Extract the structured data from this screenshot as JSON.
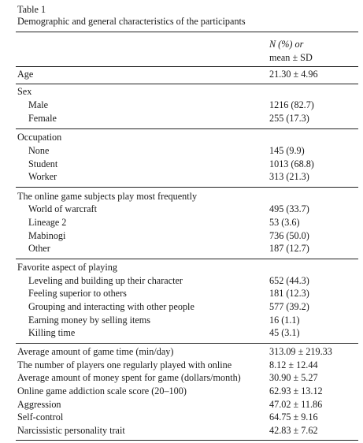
{
  "table": {
    "number": "Table 1",
    "title": "Demographic and general characteristics of the participants",
    "column_header": {
      "n_pct": "N (%) or",
      "mean_sd": "mean ± SD"
    }
  },
  "sections": {
    "age": {
      "label": "Age",
      "value": "21.30 ± 4.96"
    },
    "sex": {
      "label": "Sex",
      "items": [
        {
          "label": "Male",
          "value": "1216 (82.7)"
        },
        {
          "label": "Female",
          "value": "255 (17.3)"
        }
      ]
    },
    "occupation": {
      "label": "Occupation",
      "items": [
        {
          "label": "None",
          "value": "145 (9.9)"
        },
        {
          "label": "Student",
          "value": "1013 (68.8)"
        },
        {
          "label": "Worker",
          "value": "313 (21.3)"
        }
      ]
    },
    "game": {
      "label": "The online game subjects play most frequently",
      "items": [
        {
          "label": "World of warcraft",
          "value": "495 (33.7)"
        },
        {
          "label": "Lineage 2",
          "value": "53 (3.6)"
        },
        {
          "label": "Mabinogi",
          "value": "736 (50.0)"
        },
        {
          "label": "Other",
          "value": "187 (12.7)"
        }
      ]
    },
    "aspect": {
      "label": "Favorite aspect of playing",
      "items": [
        {
          "label": "Leveling and building up their character",
          "value": "652 (44.3)"
        },
        {
          "label": "Feeling superior to others",
          "value": "181 (12.3)"
        },
        {
          "label": "Grouping and interacting with other people",
          "value": "577 (39.2)"
        },
        {
          "label": "Earning money by selling items",
          "value": "16 (1.1)"
        },
        {
          "label": "Killing time",
          "value": "45 (3.1)"
        }
      ]
    },
    "measures": [
      {
        "label": "Average amount of game time (min/day)",
        "value": "313.09 ± 219.33"
      },
      {
        "label": "The number of players one regularly played with online",
        "value": "8.12 ± 12.44"
      },
      {
        "label": "Average amount of money spent for game (dollars/month)",
        "value": "30.90 ± 5.27"
      },
      {
        "label": "Online game addiction scale score (20–100)",
        "value": "62.93 ± 13.12"
      },
      {
        "label": "Aggression",
        "value": "47.02 ± 11.86"
      },
      {
        "label": "Self-control",
        "value": "64.75 ± 9.16"
      },
      {
        "label": "Narcissistic personality trait",
        "value": "42.83 ± 7.62"
      }
    ]
  }
}
